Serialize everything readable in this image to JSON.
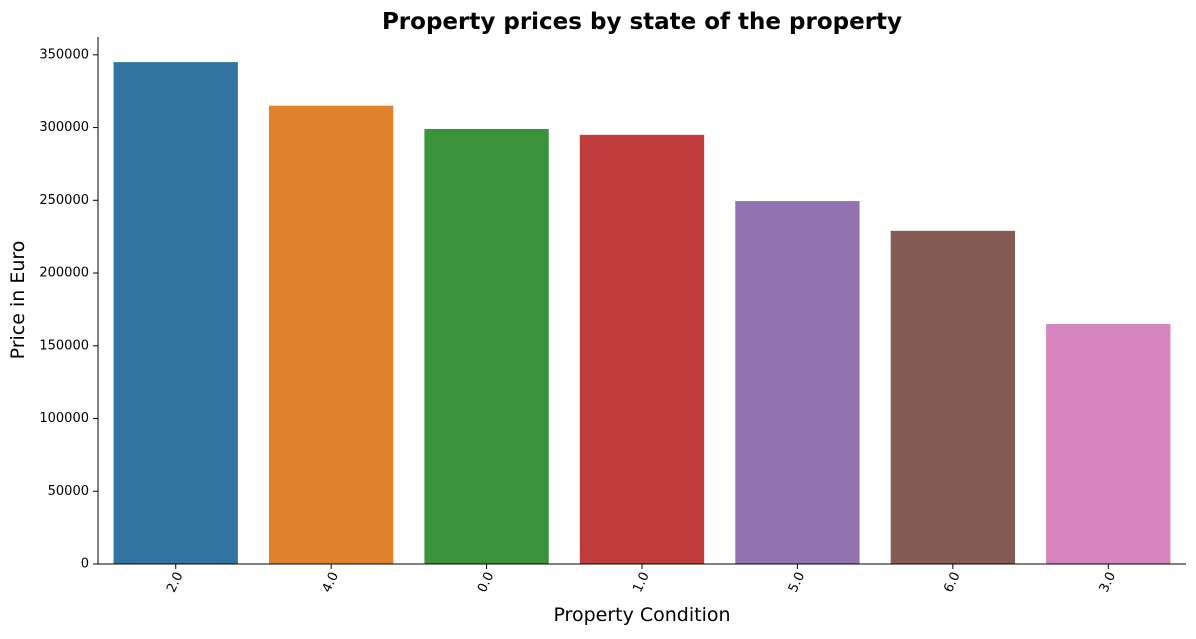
{
  "chart_data": {
    "type": "bar",
    "title": "Property prices by state of the property",
    "xlabel": "Property Condition",
    "ylabel": "Price in Euro",
    "categories": [
      "2.0",
      "4.0",
      "0.0",
      "1.0",
      "5.0",
      "6.0",
      "3.0"
    ],
    "values": [
      345000,
      315000,
      299000,
      295000,
      249500,
      229000,
      165000
    ],
    "colors": [
      "#3274a1",
      "#e1812c",
      "#3a923a",
      "#c03d3e",
      "#9372b2",
      "#845b53",
      "#d684bd"
    ],
    "ylim": [
      0,
      362250
    ],
    "yticks": [
      0,
      50000,
      100000,
      150000,
      200000,
      250000,
      300000,
      350000
    ],
    "ytick_labels": [
      "0",
      "50000",
      "100000",
      "150000",
      "200000",
      "250000",
      "300000",
      "350000"
    ],
    "xtick_rotation": "-65 degrees",
    "grid": false,
    "legend": "none",
    "spines": "left and bottom only"
  }
}
